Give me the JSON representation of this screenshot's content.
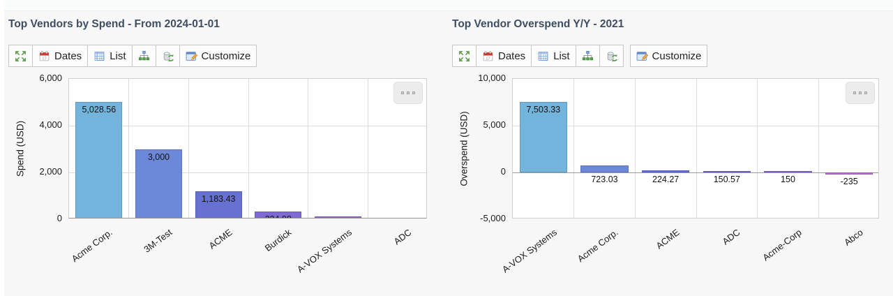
{
  "ui": {
    "page_bg": "#f7f7f8",
    "title_color": "#3f4d62",
    "charts": [
      {
        "title": "Top Vendors by Spend - From 2024-01-01",
        "toolbar": {
          "dates": "Dates",
          "list": "List",
          "customize": "Customize"
        }
      },
      {
        "title": "Top Vendor Overspend Y/Y - 2021",
        "toolbar": {
          "dates": "Dates",
          "list": "List",
          "customize": "Customize"
        }
      }
    ],
    "toolbar_icons": [
      "expand-arrows",
      "calendar-dates",
      "table-list",
      "hierarchy",
      "database-refresh",
      "customize-window"
    ],
    "more_button": "more-options"
  },
  "chart_data": [
    {
      "type": "bar",
      "title": "Top Vendors by Spend - From 2024-01-01",
      "ylabel": "Spend (USD)",
      "xlabel": "",
      "categories": [
        "Acme Corp.",
        "3M-Test",
        "ACME",
        "Burdick",
        "A-VOX Systems",
        "ADC"
      ],
      "values": [
        5028.56,
        3000,
        1183.43,
        334.98,
        130,
        30
      ],
      "value_labels": [
        "5,028.56",
        "3,000",
        "1,183.43",
        "334.98",
        "",
        ""
      ],
      "label_pos": [
        "inside",
        "inside",
        "inside",
        "inside",
        "none",
        "none"
      ],
      "ylim": [
        0,
        6000
      ],
      "yticks": [
        6000,
        4000,
        2000,
        0
      ],
      "ytick_labels": [
        "6,000",
        "4,000",
        "2,000",
        "0"
      ],
      "grid": true,
      "legend": false,
      "bar_colors": [
        "#72b4db",
        "#6d88d9",
        "#6671d1",
        "#7e69d5",
        "#9465d8",
        "#b76eda"
      ]
    },
    {
      "type": "bar",
      "title": "Top Vendor Overspend Y/Y - 2021",
      "ylabel": "Overspend (USD)",
      "xlabel": "",
      "categories": [
        "A-VOX Systems",
        "Acme Corp.",
        "ACME",
        "ADC",
        "Acme-Corp",
        "Abco"
      ],
      "values": [
        7503.33,
        723.03,
        224.27,
        150.57,
        150,
        -235
      ],
      "value_labels": [
        "7,503.33",
        "723.03",
        "224.27",
        "150.57",
        "150",
        "-235"
      ],
      "label_pos": [
        "inside",
        "below",
        "below",
        "below",
        "below",
        "below"
      ],
      "ylim": [
        -5000,
        10000
      ],
      "yticks": [
        10000,
        5000,
        0,
        -5000
      ],
      "ytick_labels": [
        "10,000",
        "5,000",
        "0",
        "-5,000"
      ],
      "grid": true,
      "legend": false,
      "bar_colors": [
        "#72b4db",
        "#6d88d9",
        "#6671d1",
        "#7e69d5",
        "#9465d8",
        "#b76eda"
      ]
    }
  ]
}
